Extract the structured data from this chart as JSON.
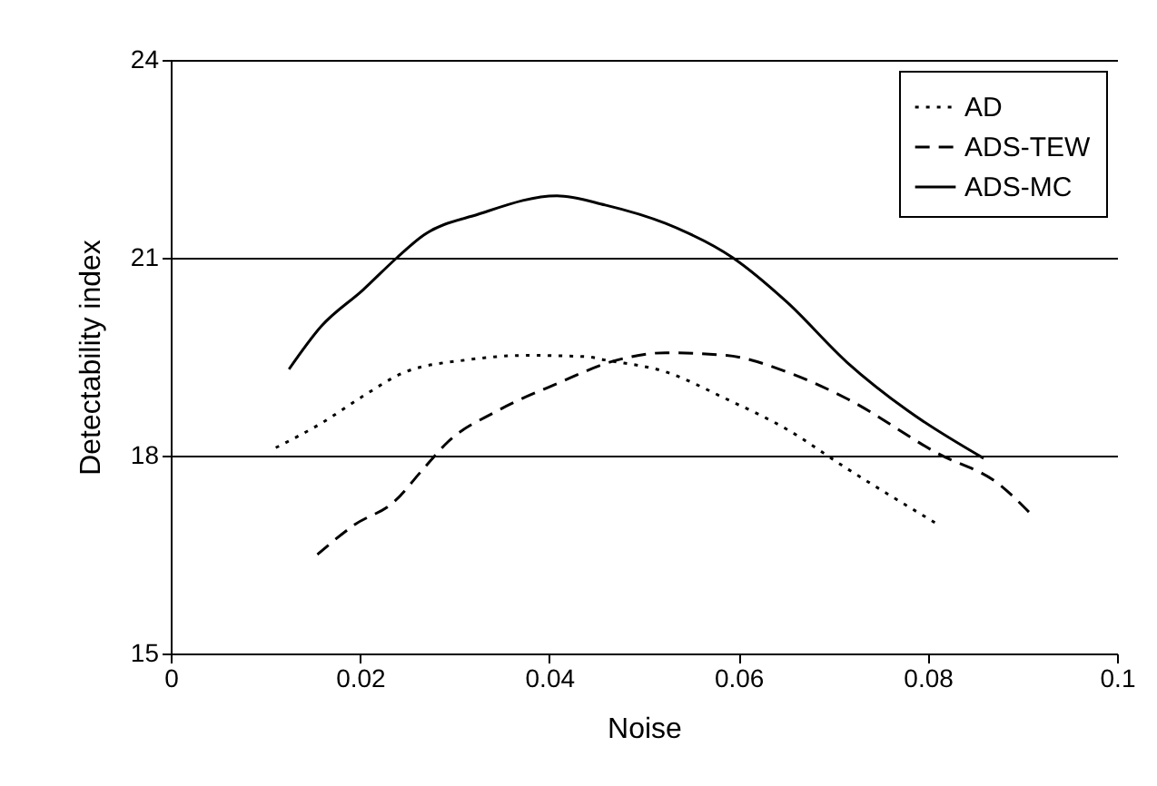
{
  "chart_data": {
    "type": "line",
    "xlabel": "Noise",
    "ylabel": "Detectability index",
    "xlim": [
      0,
      0.1
    ],
    "ylim": [
      15,
      24
    ],
    "xticks": [
      0,
      0.02,
      0.04,
      0.06,
      0.08,
      0.1
    ],
    "yticks": [
      15,
      18,
      21,
      24
    ],
    "grid": "y",
    "legend": "top right",
    "marker": "none",
    "series": [
      {
        "name": "AD",
        "color": "#000000",
        "line_style": "dotted",
        "x": [
          0.0111,
          0.0159,
          0.0203,
          0.0248,
          0.0312,
          0.0376,
          0.044,
          0.0459,
          0.0523,
          0.0587,
          0.0651,
          0.0715,
          0.0808
        ],
        "values": [
          18.12,
          18.49,
          18.9,
          19.27,
          19.45,
          19.52,
          19.5,
          19.45,
          19.27,
          18.86,
          18.4,
          17.8,
          16.98
        ]
      },
      {
        "name": "ADS-TEW",
        "color": "#000000",
        "line_style": "dashed",
        "x": [
          0.0155,
          0.0194,
          0.0236,
          0.0267,
          0.0293,
          0.0344,
          0.0408,
          0.0472,
          0.0523,
          0.0587,
          0.0651,
          0.0715,
          0.0811,
          0.0875,
          0.091
        ],
        "values": [
          16.5,
          16.95,
          17.3,
          17.8,
          18.21,
          18.67,
          19.09,
          19.45,
          19.56,
          19.52,
          19.27,
          18.86,
          18.03,
          17.57,
          17.1
        ]
      },
      {
        "name": "ADS-MC",
        "color": "#000000",
        "line_style": "solid",
        "x": [
          0.0125,
          0.0159,
          0.0203,
          0.0239,
          0.0267,
          0.0325,
          0.0408,
          0.0459,
          0.0523,
          0.0594,
          0.0651,
          0.0715,
          0.0779,
          0.0859
        ],
        "values": [
          19.31,
          19.96,
          20.51,
          21.0,
          21.34,
          21.66,
          21.94,
          21.8,
          21.52,
          21.0,
          20.33,
          19.41,
          18.68,
          17.96
        ]
      }
    ]
  }
}
